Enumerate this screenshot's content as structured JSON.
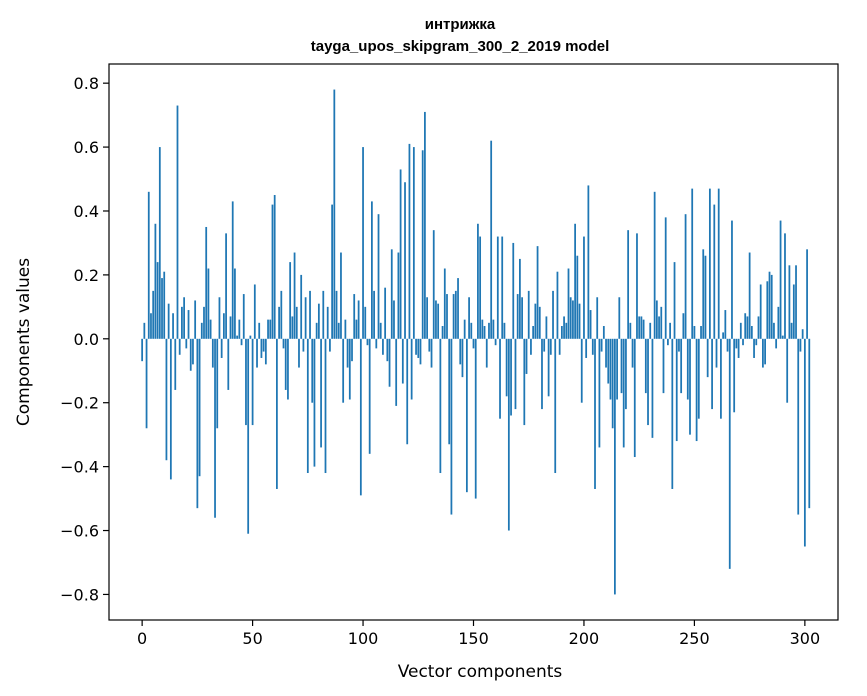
{
  "chart_data": {
    "type": "bar",
    "title": "интрижка",
    "subtitle": "tayga_upos_skipgram_300_2_2019 model",
    "xlabel": "Vector components",
    "ylabel": "Components values",
    "xlim": [
      -15,
      315
    ],
    "ylim": [
      -0.88,
      0.86
    ],
    "xticks": [
      0,
      50,
      100,
      150,
      200,
      250,
      300
    ],
    "xtick_labels": [
      "0",
      "50",
      "100",
      "150",
      "200",
      "250",
      "300"
    ],
    "yticks": [
      -0.8,
      -0.6,
      -0.4,
      -0.2,
      0.0,
      0.2,
      0.4,
      0.6,
      0.8
    ],
    "ytick_labels": [
      "−0.8",
      "−0.6",
      "−0.4",
      "−0.2",
      "0.0",
      "0.2",
      "0.4",
      "0.6",
      "0.8"
    ],
    "grid": false,
    "bar_color": "#1f77b4",
    "x_start": 0,
    "values": [
      -0.07,
      0.05,
      -0.28,
      0.46,
      0.08,
      0.15,
      0.36,
      0.24,
      0.6,
      0.19,
      0.21,
      -0.38,
      0.11,
      -0.44,
      0.08,
      -0.16,
      0.73,
      -0.05,
      0.1,
      0.13,
      -0.03,
      0.09,
      -0.1,
      -0.08,
      0.12,
      -0.53,
      -0.43,
      0.05,
      0.1,
      0.35,
      0.22,
      0.06,
      -0.09,
      -0.56,
      -0.28,
      0.13,
      -0.06,
      0.08,
      0.33,
      -0.16,
      0.07,
      0.43,
      0.22,
      0.01,
      0.06,
      -0.02,
      0.14,
      -0.27,
      -0.61,
      0.01,
      -0.27,
      0.17,
      -0.09,
      0.05,
      -0.06,
      -0.04,
      -0.08,
      0.06,
      0.06,
      0.42,
      0.45,
      -0.47,
      0.1,
      0.15,
      -0.03,
      -0.16,
      -0.19,
      0.24,
      0.07,
      0.27,
      0.1,
      -0.09,
      0.2,
      -0.04,
      0.13,
      -0.42,
      0.15,
      -0.2,
      -0.4,
      0.05,
      0.11,
      -0.34,
      0.15,
      -0.42,
      0.1,
      -0.04,
      0.42,
      0.78,
      0.15,
      0.05,
      0.27,
      -0.2,
      0.06,
      -0.09,
      -0.19,
      -0.07,
      0.14,
      0.06,
      0.12,
      -0.49,
      0.6,
      0.1,
      -0.02,
      -0.36,
      0.43,
      0.15,
      -0.03,
      0.39,
      0.05,
      -0.05,
      0.16,
      -0.07,
      -0.15,
      0.28,
      0.12,
      -0.21,
      0.27,
      0.53,
      -0.14,
      0.49,
      -0.33,
      0.61,
      -0.19,
      0.6,
      -0.05,
      -0.06,
      -0.08,
      0.59,
      0.71,
      0.13,
      -0.04,
      -0.09,
      0.34,
      0.12,
      0.11,
      -0.42,
      0.04,
      0.22,
      0.14,
      -0.33,
      -0.55,
      0.14,
      0.15,
      0.19,
      -0.08,
      -0.12,
      0.06,
      -0.48,
      0.13,
      0.05,
      -0.03,
      -0.5,
      0.36,
      0.32,
      0.06,
      0.04,
      -0.09,
      0.05,
      0.62,
      0.06,
      -0.02,
      0.32,
      -0.25,
      0.32,
      0.05,
      -0.18,
      -0.6,
      -0.24,
      0.3,
      -0.22,
      0.14,
      0.25,
      0.13,
      -0.27,
      -0.11,
      0.15,
      -0.05,
      0.04,
      0.11,
      0.29,
      0.1,
      -0.22,
      -0.04,
      0.07,
      -0.18,
      -0.05,
      0.15,
      -0.42,
      0.21,
      -0.05,
      0.04,
      0.07,
      0.05,
      0.22,
      0.13,
      0.12,
      0.36,
      0.26,
      0.11,
      -0.2,
      0.32,
      -0.06,
      0.48,
      0.09,
      -0.05,
      -0.47,
      0.13,
      -0.34,
      -0.04,
      0.04,
      -0.09,
      -0.14,
      -0.19,
      -0.28,
      -0.8,
      -0.19,
      0.13,
      -0.17,
      -0.34,
      -0.22,
      0.34,
      0.05,
      -0.09,
      -0.37,
      0.33,
      0.07,
      0.07,
      0.06,
      -0.17,
      -0.27,
      0.05,
      -0.31,
      0.46,
      0.12,
      0.07,
      0.1,
      -0.17,
      0.38,
      -0.02,
      0.05,
      -0.47,
      0.24,
      -0.32,
      -0.04,
      -0.17,
      0.08,
      0.39,
      -0.19,
      -0.3,
      0.47,
      0.04,
      -0.32,
      -0.25,
      0.04,
      0.28,
      0.26,
      -0.12,
      0.47,
      -0.22,
      0.42,
      -0.09,
      0.47,
      -0.25,
      0.02,
      0.09,
      -0.04,
      -0.72,
      0.37,
      -0.23,
      -0.03,
      -0.06,
      0.05,
      -0.02,
      0.08,
      0.07,
      0.27,
      0.04,
      -0.06,
      -0.02,
      0.07,
      0.17,
      -0.09,
      -0.08,
      0.18,
      0.21,
      0.2,
      0.05,
      -0.03,
      0.1,
      0.37,
      0.01,
      0.33,
      -0.2,
      0.23,
      0.05,
      0.17,
      0.23,
      -0.55,
      -0.04,
      0.03,
      -0.65,
      0.28,
      -0.53
    ]
  }
}
